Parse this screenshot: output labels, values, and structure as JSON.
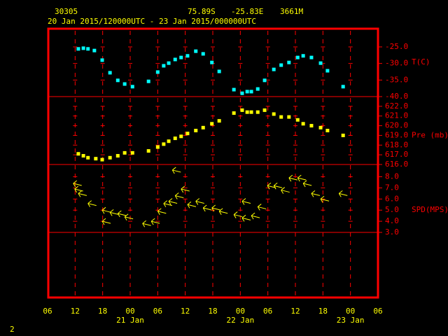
{
  "header": {
    "station": "30305",
    "lat": "75.89S",
    "lon": "-25.83E",
    "elev": "3661M",
    "period": "20 Jan 2015/120000UTC - 23 Jan 2015/000000UTC",
    "page_number": "2"
  },
  "chart_data": [
    {
      "type": "scatter",
      "y_label": "T(C)",
      "color": "#00ffff",
      "x": [
        6.7,
        7.8,
        8.8,
        10.2,
        11.9,
        13.6,
        15.3,
        16.8,
        18.5,
        22.0,
        24.0,
        25.3,
        26.4,
        27.8,
        29.1,
        30.5,
        32.3,
        33.9,
        35.8,
        37.4,
        40.6,
        42.4,
        43.5,
        44.4,
        45.8,
        47.3,
        49.3,
        50.9,
        52.6,
        54.5,
        55.7,
        57.5,
        59.5,
        61.0,
        64.4
      ],
      "values": [
        -25.6,
        -25.4,
        -25.6,
        -26.1,
        -29.0,
        -32.8,
        -35.1,
        -36.2,
        -37.0,
        -35.4,
        -32.6,
        -30.7,
        -29.9,
        -28.8,
        -28.2,
        -27.7,
        -26.3,
        -27.1,
        -29.7,
        -32.4,
        -37.9,
        -39.0,
        -38.5,
        -38.5,
        -37.7,
        -35.1,
        -31.8,
        -30.5,
        -29.7,
        -28.2,
        -27.7,
        -28.2,
        -29.9,
        -32.2,
        -37.0
      ],
      "xlim": [
        0,
        72
      ],
      "ylim": [
        -40,
        -19.3
      ],
      "yticks": [
        {
          "value": -25,
          "label": "-25.0"
        },
        {
          "value": -30,
          "label": "-30.0"
        },
        {
          "value": -35,
          "label": "-35.0"
        },
        {
          "value": -40,
          "label": "-40.0"
        }
      ]
    },
    {
      "type": "scatter",
      "y_label": "Pre (mb)",
      "color": "#ffff00",
      "x": [
        6.7,
        7.8,
        8.8,
        10.5,
        11.9,
        13.6,
        15.3,
        16.8,
        18.5,
        22.0,
        24.0,
        25.3,
        26.4,
        27.8,
        29.1,
        30.5,
        32.3,
        33.9,
        35.8,
        37.4,
        40.6,
        42.4,
        43.5,
        44.4,
        45.8,
        47.3,
        49.3,
        50.9,
        52.6,
        54.5,
        55.7,
        57.5,
        59.5,
        61.0,
        64.4
      ],
      "values": [
        617.1,
        616.9,
        616.7,
        616.6,
        616.5,
        616.7,
        616.9,
        617.2,
        617.2,
        617.4,
        617.8,
        618.1,
        618.4,
        618.7,
        618.9,
        619.2,
        619.5,
        619.8,
        620.2,
        620.5,
        621.3,
        621.6,
        621.4,
        621.4,
        621.4,
        621.6,
        621.2,
        620.9,
        620.9,
        620.6,
        620.2,
        620.0,
        619.8,
        619.5,
        619.0
      ],
      "xlim": [
        0,
        72
      ],
      "ylim": [
        616,
        623
      ],
      "yticks": [
        {
          "value": 622,
          "label": "622.0"
        },
        {
          "value": 621,
          "label": "621.0"
        },
        {
          "value": 620,
          "label": "620.0"
        },
        {
          "value": 619,
          "label": "619.0"
        },
        {
          "value": 618,
          "label": "618.0"
        },
        {
          "value": 617,
          "label": "617.0"
        },
        {
          "value": 616,
          "label": "616.0"
        }
      ]
    },
    {
      "type": "wind",
      "y_label": "SPD(MPS)",
      "color": "#ffff00",
      "x": [
        5.6,
        5.9,
        6.7,
        8.8,
        11.9,
        11.9,
        13.6,
        15.3,
        16.8,
        20.7,
        22.6,
        24.0,
        25.3,
        26.4,
        27.2,
        27.8,
        29.1,
        30.5,
        32.3,
        33.9,
        35.8,
        37.4,
        40.6,
        42.4,
        42.4,
        44.4,
        45.8,
        47.9,
        49.3,
        50.9,
        52.6,
        54.5,
        55.7,
        57.5,
        59.5,
        63.5
      ],
      "values": [
        7.4,
        6.9,
        6.5,
        5.6,
        5.0,
        4.0,
        4.8,
        4.7,
        4.4,
        3.8,
        4.0,
        4.9,
        5.6,
        5.8,
        8.6,
        6.3,
        6.9,
        5.5,
        5.8,
        5.2,
        5.2,
        4.9,
        4.6,
        5.8,
        4.3,
        4.5,
        5.3,
        7.2,
        7.2,
        6.8,
        7.9,
        7.9,
        7.4,
        6.5,
        6.0,
        6.5
      ],
      "xlim": [
        0,
        72
      ],
      "ylim": [
        3,
        9.1
      ],
      "yticks": [
        {
          "value": 8,
          "label": "8.0"
        },
        {
          "value": 7,
          "label": "7.0"
        },
        {
          "value": 6,
          "label": "6.0"
        },
        {
          "value": 5,
          "label": "5.0"
        },
        {
          "value": 4,
          "label": "4.0"
        },
        {
          "value": 3,
          "label": "3.0"
        }
      ],
      "xticks": [
        {
          "value": 0,
          "label": "06"
        },
        {
          "value": 6,
          "label": "12"
        },
        {
          "value": 12,
          "label": "18"
        },
        {
          "value": 18,
          "label": "00"
        },
        {
          "value": 24,
          "label": "06"
        },
        {
          "value": 30,
          "label": "12"
        },
        {
          "value": 36,
          "label": "18"
        },
        {
          "value": 42,
          "label": "00"
        },
        {
          "value": 48,
          "label": "06"
        },
        {
          "value": 54,
          "label": "12"
        },
        {
          "value": 60,
          "label": "18"
        },
        {
          "value": 66,
          "label": "00"
        },
        {
          "value": 72,
          "label": "06"
        }
      ],
      "date_labels": [
        {
          "value": 18,
          "label": "21 Jan"
        },
        {
          "value": 42,
          "label": "22 Jan"
        },
        {
          "value": 66,
          "label": "23 Jan"
        }
      ]
    }
  ]
}
